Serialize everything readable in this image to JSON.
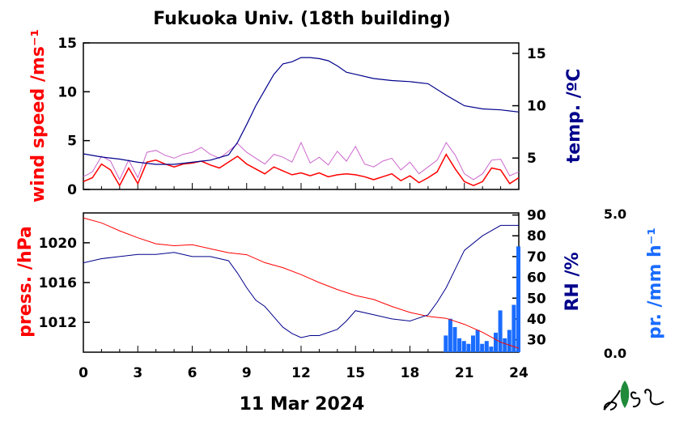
{
  "title": "Fukuoka Univ. (18th building)",
  "date_label": "11 Mar 2024",
  "colors": {
    "wind": "#ff0000",
    "wind_gust": "#cc66cc",
    "temperature": "#00008b",
    "pressure": "#ff0000",
    "humidity": "#00008b",
    "precipitation": "#1a6cff",
    "frame": "#000000"
  },
  "logo_icon": "leaf-logo-icon",
  "chart_data": [
    {
      "type": "line",
      "panel": "top",
      "x_unit": "hour",
      "xlim": [
        0,
        24
      ],
      "grid": false,
      "y_left": {
        "label": "wind speed /ms⁻¹",
        "ylim": [
          0,
          15
        ],
        "ticks": [
          0,
          5,
          10,
          15
        ]
      },
      "y_right": {
        "label": "temp. /ºC",
        "ylim": [
          2,
          16
        ],
        "ticks": [
          5,
          10,
          15
        ]
      },
      "series": [
        {
          "key": "wind",
          "axis": "left",
          "x": [
            0,
            0.5,
            1,
            1.5,
            2,
            2.5,
            3,
            3.5,
            4,
            4.5,
            5,
            5.5,
            6,
            6.5,
            7,
            7.5,
            8,
            8.5,
            9,
            9.5,
            10,
            10.5,
            11,
            11.5,
            12,
            12.5,
            13,
            13.5,
            14,
            14.5,
            15,
            15.5,
            16,
            16.5,
            17,
            17.5,
            18,
            18.5,
            19,
            19.5,
            20,
            20.5,
            21,
            21.5,
            22,
            22.5,
            23,
            23.5,
            24
          ],
          "values": [
            0.8,
            1.2,
            2.6,
            2.0,
            0.4,
            2.2,
            0.6,
            2.8,
            3.0,
            2.6,
            2.3,
            2.6,
            2.7,
            2.9,
            2.5,
            2.2,
            2.8,
            3.4,
            2.6,
            2.1,
            1.6,
            2.3,
            1.9,
            1.5,
            1.7,
            1.4,
            1.7,
            1.3,
            1.5,
            1.6,
            1.5,
            1.3,
            1.0,
            1.3,
            1.6,
            0.9,
            1.4,
            0.7,
            1.2,
            1.8,
            3.6,
            2.1,
            0.8,
            0.4,
            0.8,
            2.2,
            2.0,
            0.6,
            1.2
          ]
        },
        {
          "key": "wind_gust",
          "axis": "left",
          "x": [
            0,
            0.5,
            1,
            1.5,
            2,
            2.5,
            3,
            3.5,
            4,
            4.5,
            5,
            5.5,
            6,
            6.5,
            7,
            7.5,
            8,
            8.5,
            9,
            9.5,
            10,
            10.5,
            11,
            11.5,
            12,
            12.5,
            13,
            13.5,
            14,
            14.5,
            15,
            15.5,
            16,
            16.5,
            17,
            17.5,
            18,
            18.5,
            19,
            19.5,
            20,
            20.5,
            21,
            21.5,
            22,
            22.5,
            23,
            23.5,
            24
          ],
          "values": [
            1.3,
            1.8,
            3.4,
            2.9,
            1.0,
            3.0,
            1.2,
            3.8,
            4.0,
            3.5,
            3.2,
            3.6,
            3.8,
            4.3,
            3.6,
            3.2,
            3.9,
            4.7,
            3.8,
            3.2,
            2.6,
            3.6,
            3.3,
            2.8,
            4.8,
            2.7,
            3.3,
            2.5,
            3.9,
            2.9,
            4.4,
            2.6,
            2.3,
            2.9,
            3.2,
            2.0,
            2.8,
            1.6,
            2.3,
            3.0,
            4.8,
            3.5,
            1.6,
            1.0,
            1.6,
            3.0,
            3.1,
            1.4,
            1.8
          ]
        },
        {
          "key": "temperature",
          "axis": "right",
          "x": [
            0,
            1,
            2,
            3,
            4,
            5,
            6,
            7,
            8,
            8.5,
            9,
            9.5,
            10,
            10.5,
            11,
            11.5,
            12,
            12.5,
            13,
            13.5,
            14,
            14.5,
            15,
            16,
            17,
            18,
            19,
            20,
            21,
            22,
            23,
            24
          ],
          "values": [
            5.4,
            5.1,
            4.9,
            4.6,
            4.4,
            4.4,
            4.6,
            4.8,
            5.3,
            6.5,
            8.2,
            10.0,
            11.5,
            13.0,
            14.0,
            14.2,
            14.6,
            14.6,
            14.5,
            14.3,
            13.8,
            13.2,
            13.0,
            12.6,
            12.4,
            12.3,
            12.1,
            11.0,
            10.0,
            9.7,
            9.6,
            9.4
          ]
        }
      ]
    },
    {
      "type": "line",
      "panel": "bottom",
      "x_unit": "hour",
      "xlim": [
        0,
        24
      ],
      "xticks": [
        0,
        3,
        6,
        9,
        12,
        15,
        18,
        21,
        24
      ],
      "grid": false,
      "y_left": {
        "label": "press. /hPa",
        "ylim": [
          1009,
          1023
        ],
        "ticks": [
          1012,
          1016,
          1020
        ]
      },
      "y_right": {
        "label": "RH /%",
        "ylim": [
          24,
          91
        ],
        "ticks": [
          30,
          40,
          50,
          60,
          70,
          80,
          90
        ]
      },
      "y_right2": {
        "label": "pr. /mm h⁻¹",
        "ylim": [
          0.0,
          5.0
        ],
        "ticks": [
          "0.0",
          "5.0"
        ]
      },
      "series": [
        {
          "key": "pressure",
          "axis": "left",
          "x": [
            0,
            1,
            2,
            3,
            4,
            5,
            6,
            7,
            8,
            9,
            10,
            11,
            12,
            13,
            14,
            15,
            16,
            17,
            18,
            19,
            20,
            21,
            22,
            23,
            24
          ],
          "values": [
            1022.5,
            1022.0,
            1021.2,
            1020.5,
            1019.9,
            1019.7,
            1019.8,
            1019.4,
            1019.0,
            1018.8,
            1018.0,
            1017.5,
            1016.8,
            1016.0,
            1015.3,
            1014.7,
            1014.3,
            1013.6,
            1013.0,
            1012.6,
            1012.4,
            1011.8,
            1011.0,
            1010.0,
            1009.4
          ]
        },
        {
          "key": "humidity",
          "axis": "right",
          "x": [
            0,
            1,
            2,
            3,
            4,
            5,
            6,
            7,
            8,
            8.5,
            9,
            9.5,
            10,
            10.5,
            11,
            11.5,
            12,
            12.5,
            13,
            14,
            14.5,
            15,
            16,
            17,
            18,
            19,
            19.5,
            20,
            20.5,
            21,
            22,
            23,
            24
          ],
          "values": [
            67,
            69,
            70,
            71,
            71,
            72,
            70,
            70,
            68,
            62,
            55,
            49,
            46,
            41,
            36,
            33,
            31,
            32,
            32,
            35,
            39,
            44,
            42,
            40,
            39,
            42,
            48,
            55,
            64,
            73,
            80,
            85,
            85
          ]
        },
        {
          "key": "precipitation",
          "axis": "right2",
          "x": [
            20,
            20.25,
            20.5,
            20.75,
            21,
            21.25,
            21.5,
            21.75,
            22,
            22.25,
            22.5,
            22.75,
            23,
            23.25,
            23.5,
            23.75,
            24
          ],
          "values": [
            0.6,
            1.2,
            0.9,
            0.5,
            0.4,
            0.3,
            0.6,
            0.8,
            0.3,
            0.4,
            0.2,
            0.7,
            1.5,
            0.5,
            0.8,
            1.7,
            3.8
          ]
        }
      ]
    }
  ]
}
